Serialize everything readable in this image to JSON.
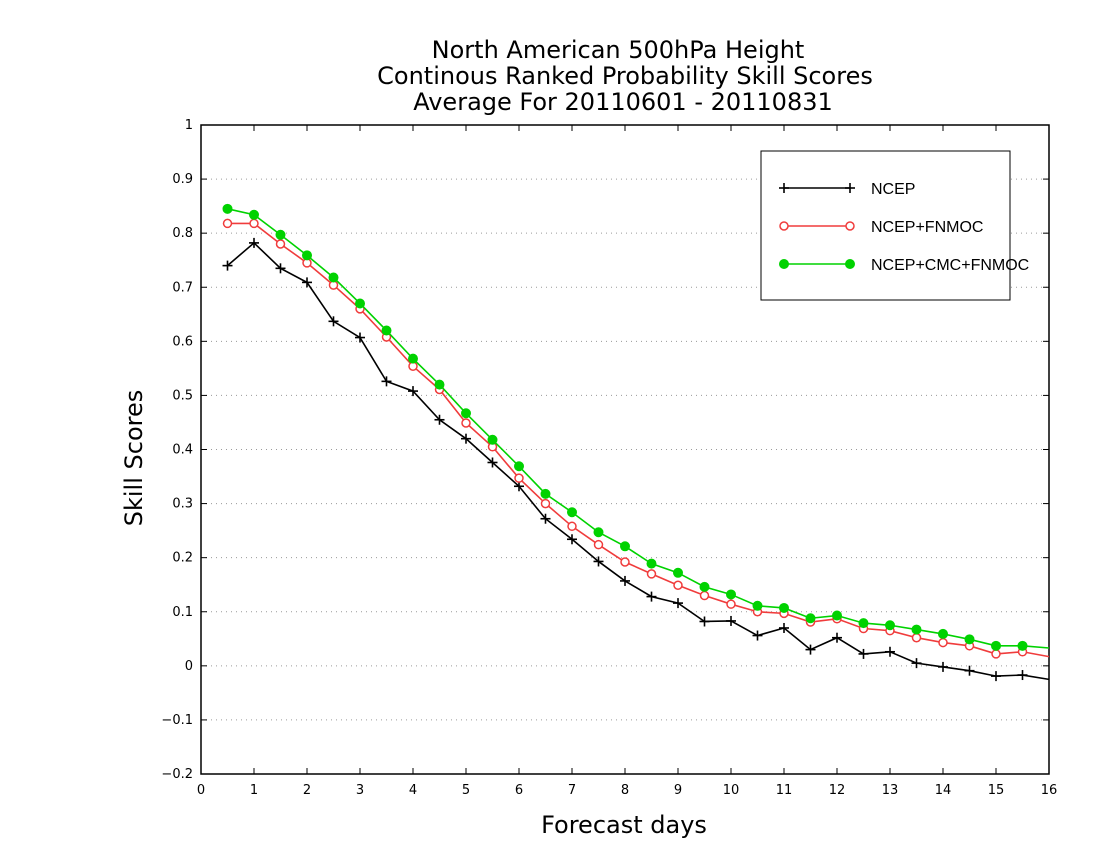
{
  "chart_data": {
    "type": "line",
    "title_lines": [
      "North American 500hPa Height",
      "Continous Ranked Probability Skill Scores",
      "Average For 20110601 - 20110831"
    ],
    "xlabel": "Forecast days",
    "ylabel": "Skill Scores",
    "xlim": [
      0,
      16
    ],
    "ylim": [
      -0.2,
      1
    ],
    "x_ticks": [
      "0",
      "1",
      "2",
      "3",
      "4",
      "5",
      "6",
      "7",
      "8",
      "9",
      "10",
      "11",
      "12",
      "13",
      "14",
      "15",
      "16"
    ],
    "y_ticks": [
      "−0.2",
      "−0.1",
      "0",
      "0.1",
      "0.2",
      "0.3",
      "0.4",
      "0.5",
      "0.6",
      "0.7",
      "0.8",
      "0.9",
      "1"
    ],
    "grid": "horizontal dotted",
    "legend_position": "top-right",
    "x": [
      0.5,
      1,
      1.5,
      2,
      2.5,
      3,
      3.5,
      4,
      4.5,
      5,
      5.5,
      6,
      6.5,
      7,
      7.5,
      8,
      8.5,
      9,
      9.5,
      10,
      10.5,
      11,
      11.5,
      12,
      12.5,
      13,
      13.5,
      14,
      14.5,
      15,
      15.5,
      16
    ],
    "series": [
      {
        "name": "NCEP",
        "color": "#000000",
        "marker": "plus",
        "values": [
          0.74,
          0.782,
          0.735,
          0.709,
          0.637,
          0.607,
          0.526,
          0.508,
          0.455,
          0.42,
          0.376,
          0.332,
          0.272,
          0.234,
          0.193,
          0.157,
          0.128,
          0.116,
          0.082,
          0.083,
          0.056,
          0.07,
          0.03,
          0.052,
          0.022,
          0.026,
          0.005,
          -0.002,
          -0.009,
          -0.019,
          -0.017,
          -0.025
        ]
      },
      {
        "name": "NCEP+FNMOC",
        "color": "#f03c3c",
        "marker": "open-circle",
        "values": [
          0.818,
          0.818,
          0.78,
          0.745,
          0.704,
          0.66,
          0.608,
          0.554,
          0.511,
          0.449,
          0.405,
          0.347,
          0.3,
          0.258,
          0.224,
          0.192,
          0.17,
          0.149,
          0.13,
          0.114,
          0.1,
          0.097,
          0.081,
          0.087,
          0.069,
          0.065,
          0.052,
          0.043,
          0.037,
          0.022,
          0.026,
          0.017
        ]
      },
      {
        "name": "NCEP+CMC+FNMOC",
        "color": "#00d200",
        "marker": "filled-circle",
        "values": [
          0.845,
          0.834,
          0.797,
          0.759,
          0.718,
          0.67,
          0.62,
          0.568,
          0.52,
          0.467,
          0.418,
          0.369,
          0.318,
          0.284,
          0.247,
          0.221,
          0.189,
          0.172,
          0.146,
          0.132,
          0.111,
          0.107,
          0.088,
          0.093,
          0.079,
          0.075,
          0.067,
          0.059,
          0.049,
          0.037,
          0.037,
          0.033
        ]
      }
    ]
  }
}
